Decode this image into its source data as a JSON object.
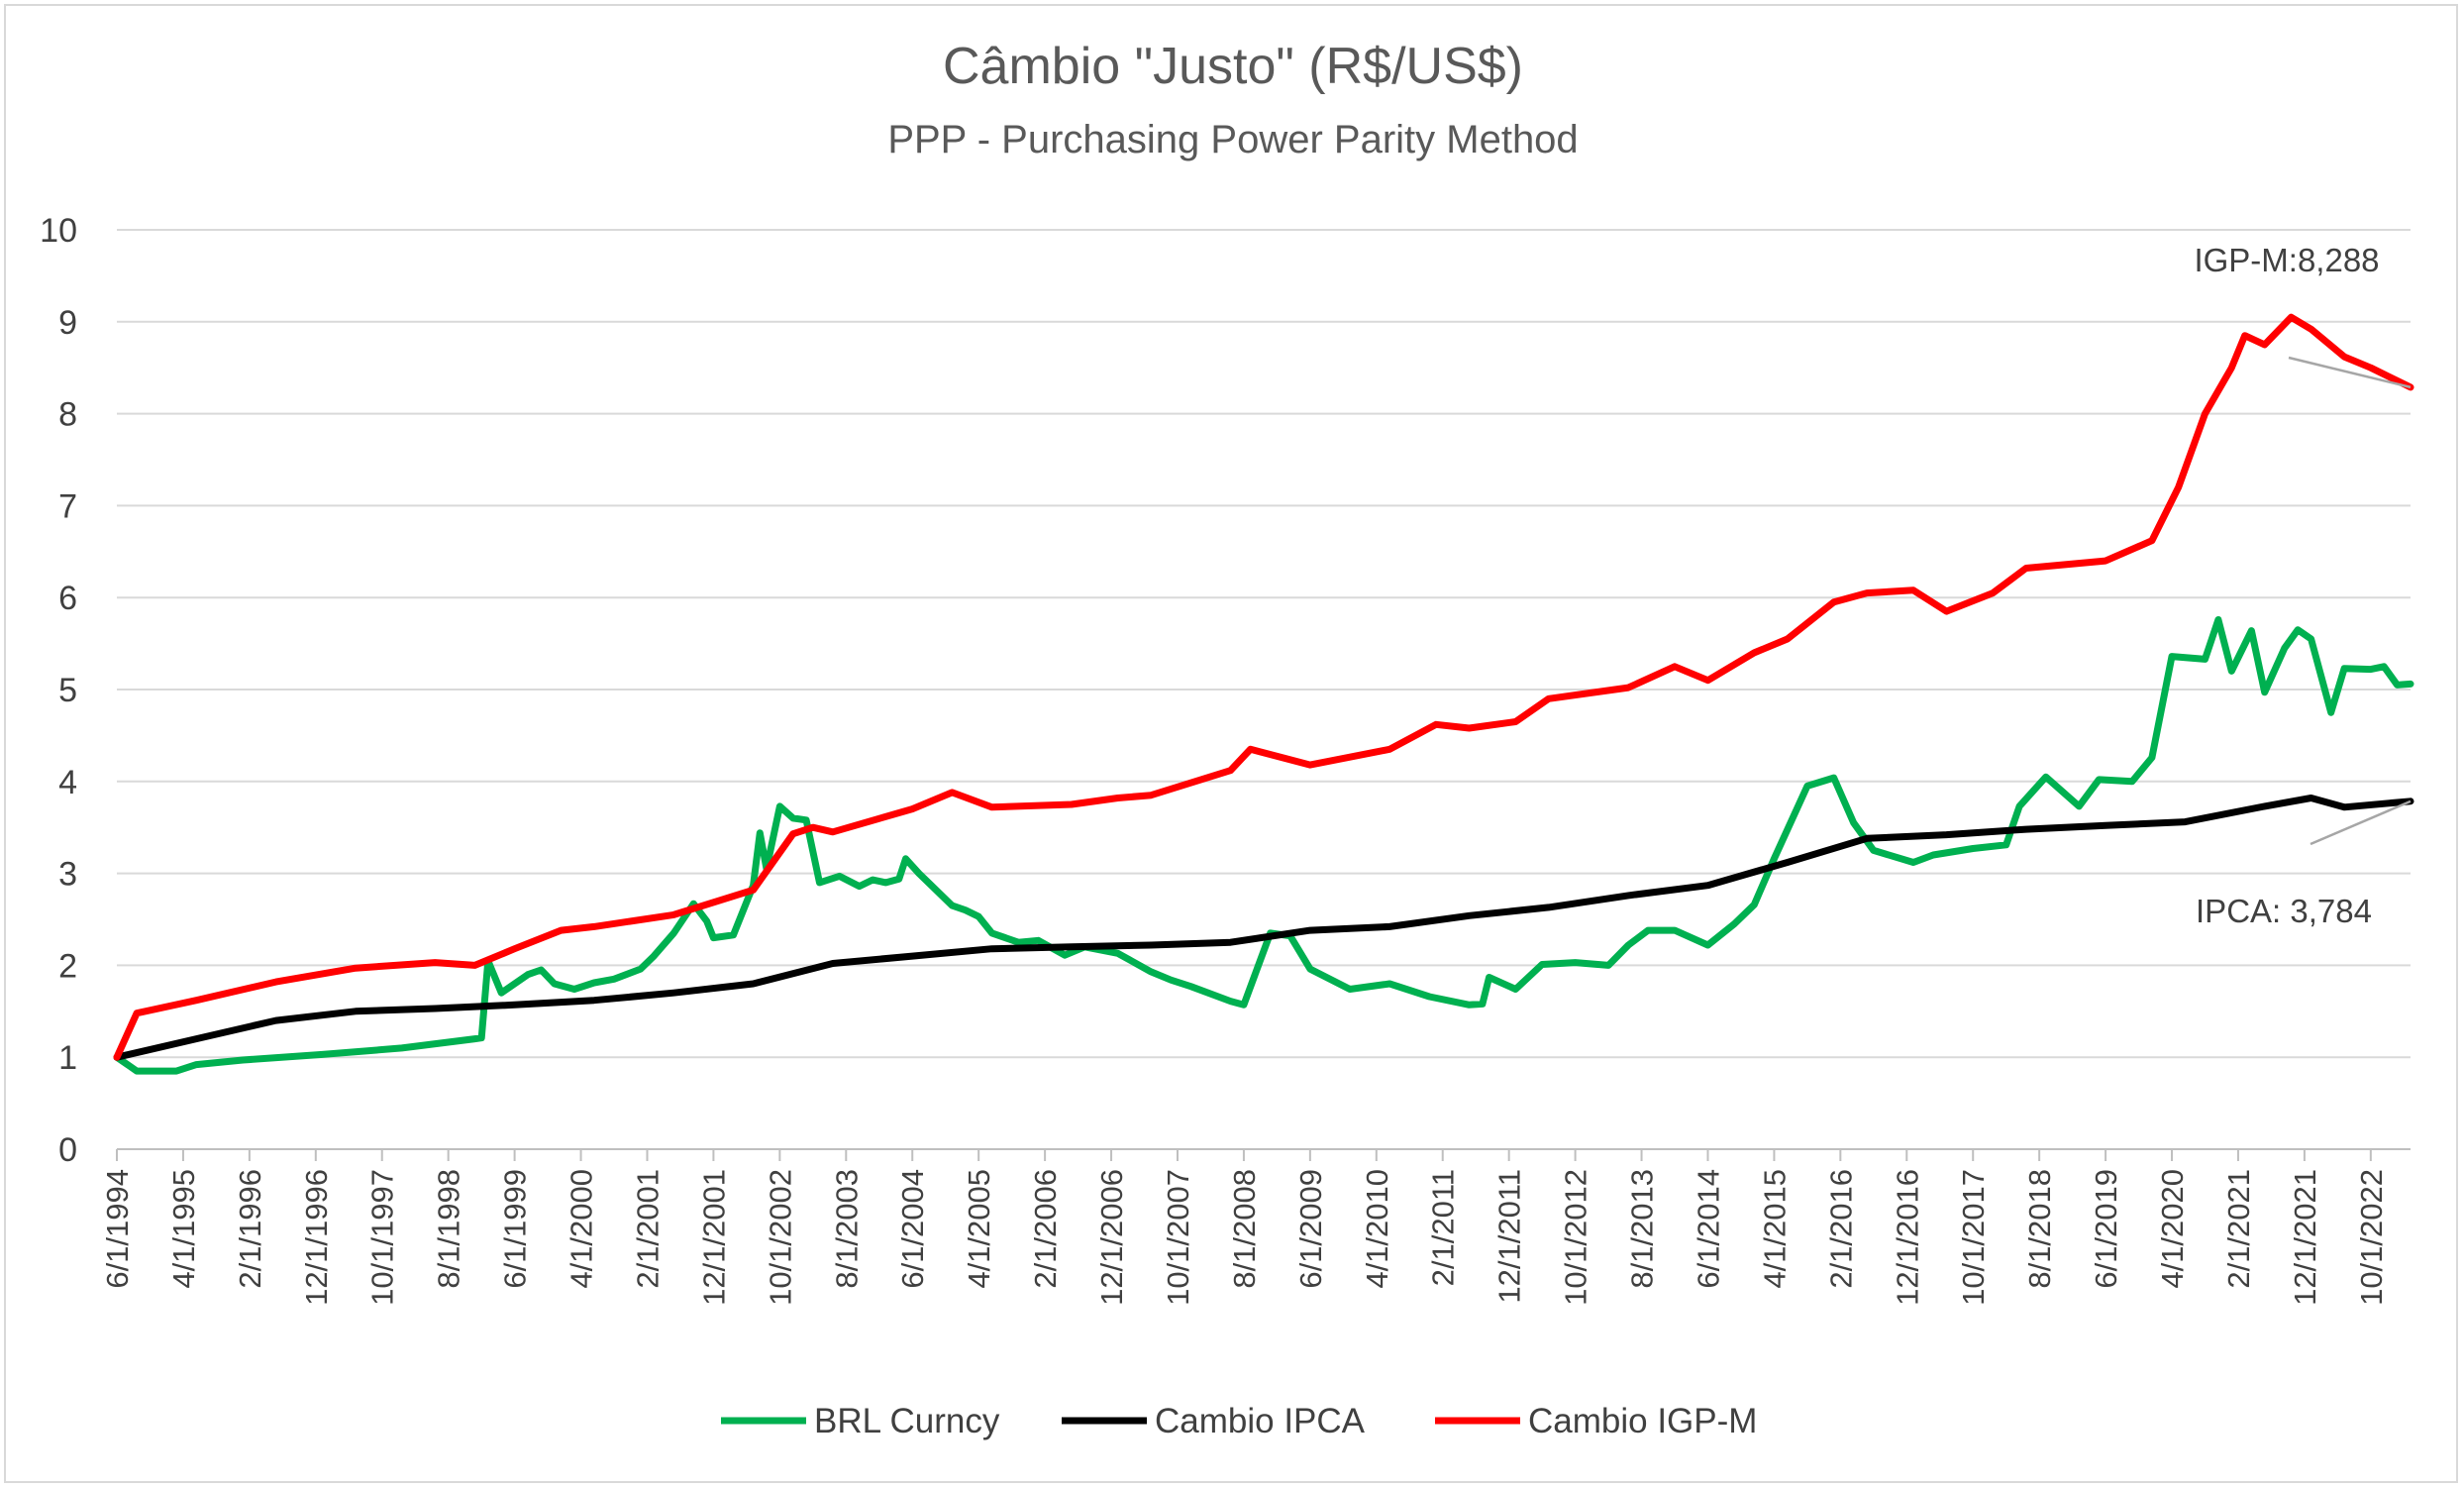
{
  "chart_data": {
    "type": "line",
    "title": "Câmbio \"Justo\" (R$/US$)",
    "subtitle": "PPP - Purchasing Power Parity Method",
    "ylim": [
      0,
      10
    ],
    "y_ticks": [
      0,
      1,
      2,
      3,
      4,
      5,
      6,
      7,
      8,
      9,
      10
    ],
    "grid": true,
    "legend_position": "bottom",
    "x_tick_labels": [
      "6/1/1994",
      "4/1/1995",
      "2/1/1996",
      "12/1/1996",
      "10/1/1997",
      "8/1/1998",
      "6/1/1999",
      "4/1/2000",
      "2/1/2001",
      "12/1/2001",
      "10/1/2002",
      "8/1/2003",
      "6/1/2004",
      "4/1/2005",
      "2/1/2006",
      "12/1/2006",
      "10/1/2007",
      "8/1/2008",
      "6/1/2009",
      "4/1/2010",
      "2/1/2011",
      "12/1/2011",
      "10/1/2012",
      "8/1/2013",
      "6/1/2014",
      "4/1/2015",
      "2/1/2016",
      "12/1/2016",
      "10/1/2017",
      "8/1/2018",
      "6/1/2019",
      "4/1/2020",
      "2/1/2021",
      "12/1/2021",
      "10/1/2022"
    ],
    "series": [
      {
        "name": "BRL Curncy",
        "color": "#00b050",
        "points": [
          [
            "1994-06",
            1.0
          ],
          [
            "1994-09",
            0.85
          ],
          [
            "1995-03",
            0.85
          ],
          [
            "1995-06",
            0.92
          ],
          [
            "1996-01",
            0.97
          ],
          [
            "1997-01",
            1.03
          ],
          [
            "1998-01",
            1.1
          ],
          [
            "1998-12",
            1.2
          ],
          [
            "1999-01",
            1.21
          ],
          [
            "1999-02",
            2.05
          ],
          [
            "1999-04",
            1.7
          ],
          [
            "1999-08",
            1.9
          ],
          [
            "1999-10",
            1.95
          ],
          [
            "1999-12",
            1.8
          ],
          [
            "2000-03",
            1.74
          ],
          [
            "2000-06",
            1.81
          ],
          [
            "2000-09",
            1.85
          ],
          [
            "2001-01",
            1.96
          ],
          [
            "2001-03",
            2.1
          ],
          [
            "2001-06",
            2.35
          ],
          [
            "2001-09",
            2.67
          ],
          [
            "2001-11",
            2.48
          ],
          [
            "2001-12",
            2.3
          ],
          [
            "2002-03",
            2.33
          ],
          [
            "2002-06",
            2.87
          ],
          [
            "2002-07",
            3.44
          ],
          [
            "2002-08",
            3.05
          ],
          [
            "2002-10",
            3.73
          ],
          [
            "2002-12",
            3.6
          ],
          [
            "2003-02",
            3.58
          ],
          [
            "2003-04",
            2.9
          ],
          [
            "2003-07",
            2.97
          ],
          [
            "2003-10",
            2.86
          ],
          [
            "2003-12",
            2.93
          ],
          [
            "2004-02",
            2.9
          ],
          [
            "2004-04",
            2.94
          ],
          [
            "2004-05",
            3.16
          ],
          [
            "2004-07",
            3.0
          ],
          [
            "2004-12",
            2.65
          ],
          [
            "2005-02",
            2.6
          ],
          [
            "2005-04",
            2.53
          ],
          [
            "2005-06",
            2.35
          ],
          [
            "2005-10",
            2.25
          ],
          [
            "2006-01",
            2.27
          ],
          [
            "2006-05",
            2.11
          ],
          [
            "2006-08",
            2.2
          ],
          [
            "2007-01",
            2.13
          ],
          [
            "2007-06",
            1.93
          ],
          [
            "2007-09",
            1.84
          ],
          [
            "2007-12",
            1.77
          ],
          [
            "2008-06",
            1.61
          ],
          [
            "2008-08",
            1.57
          ],
          [
            "2008-12",
            2.35
          ],
          [
            "2009-03",
            2.32
          ],
          [
            "2009-06",
            1.96
          ],
          [
            "2009-12",
            1.74
          ],
          [
            "2010-06",
            1.8
          ],
          [
            "2010-12",
            1.66
          ],
          [
            "2011-06",
            1.57
          ],
          [
            "2011-08",
            1.58
          ],
          [
            "2011-09",
            1.87
          ],
          [
            "2012-01",
            1.74
          ],
          [
            "2012-05",
            2.01
          ],
          [
            "2012-10",
            2.03
          ],
          [
            "2013-03",
            2.0
          ],
          [
            "2013-06",
            2.22
          ],
          [
            "2013-09",
            2.38
          ],
          [
            "2014-01",
            2.38
          ],
          [
            "2014-06",
            2.22
          ],
          [
            "2014-10",
            2.45
          ],
          [
            "2015-01",
            2.66
          ],
          [
            "2015-04",
            3.16
          ],
          [
            "2015-09",
            3.95
          ],
          [
            "2016-01",
            4.04
          ],
          [
            "2016-04",
            3.55
          ],
          [
            "2016-07",
            3.25
          ],
          [
            "2017-01",
            3.12
          ],
          [
            "2017-04",
            3.2
          ],
          [
            "2017-10",
            3.27
          ],
          [
            "2018-03",
            3.31
          ],
          [
            "2018-05",
            3.73
          ],
          [
            "2018-09",
            4.05
          ],
          [
            "2019-02",
            3.73
          ],
          [
            "2019-05",
            4.02
          ],
          [
            "2019-10",
            4.0
          ],
          [
            "2020-01",
            4.26
          ],
          [
            "2020-04",
            5.36
          ],
          [
            "2020-09",
            5.33
          ],
          [
            "2020-11",
            5.76
          ],
          [
            "2021-01",
            5.2
          ],
          [
            "2021-04",
            5.64
          ],
          [
            "2021-06",
            4.97
          ],
          [
            "2021-09",
            5.45
          ],
          [
            "2021-11",
            5.65
          ],
          [
            "2022-01",
            5.55
          ],
          [
            "2022-04",
            4.75
          ],
          [
            "2022-06",
            5.23
          ],
          [
            "2022-10",
            5.22
          ],
          [
            "2022-12",
            5.25
          ],
          [
            "2023-02",
            5.05
          ],
          [
            "2023-04",
            5.06
          ]
        ]
      },
      {
        "name": "Cambio IPCA",
        "color": "#000000",
        "points": [
          [
            "1994-06",
            1.0
          ],
          [
            "1995-06",
            1.2
          ],
          [
            "1996-06",
            1.4
          ],
          [
            "1997-06",
            1.5
          ],
          [
            "1998-06",
            1.53
          ],
          [
            "1999-06",
            1.57
          ],
          [
            "2000-06",
            1.62
          ],
          [
            "2001-06",
            1.7
          ],
          [
            "2002-06",
            1.8
          ],
          [
            "2003-06",
            2.02
          ],
          [
            "2004-06",
            2.1
          ],
          [
            "2005-06",
            2.18
          ],
          [
            "2006-06",
            2.2
          ],
          [
            "2007-06",
            2.22
          ],
          [
            "2008-06",
            2.25
          ],
          [
            "2009-06",
            2.38
          ],
          [
            "2010-06",
            2.42
          ],
          [
            "2011-06",
            2.54
          ],
          [
            "2012-06",
            2.63
          ],
          [
            "2013-06",
            2.76
          ],
          [
            "2014-06",
            2.87
          ],
          [
            "2015-06",
            3.12
          ],
          [
            "2016-06",
            3.38
          ],
          [
            "2017-06",
            3.42
          ],
          [
            "2018-06",
            3.48
          ],
          [
            "2019-06",
            3.52
          ],
          [
            "2020-06",
            3.56
          ],
          [
            "2021-06",
            3.73
          ],
          [
            "2022-01",
            3.82
          ],
          [
            "2022-06",
            3.72
          ],
          [
            "2023-04",
            3.784
          ]
        ]
      },
      {
        "name": "Cambio IGP-M",
        "color": "#ff0000",
        "points": [
          [
            "1994-06",
            1.0
          ],
          [
            "1994-09",
            1.48
          ],
          [
            "1995-06",
            1.62
          ],
          [
            "1996-06",
            1.82
          ],
          [
            "1997-06",
            1.97
          ],
          [
            "1998-06",
            2.03
          ],
          [
            "1998-12",
            2.0
          ],
          [
            "1999-06",
            2.18
          ],
          [
            "2000-01",
            2.38
          ],
          [
            "2000-06",
            2.42
          ],
          [
            "2001-06",
            2.55
          ],
          [
            "2002-06",
            2.82
          ],
          [
            "2002-12",
            3.43
          ],
          [
            "2003-03",
            3.5
          ],
          [
            "2003-06",
            3.45
          ],
          [
            "2004-06",
            3.7
          ],
          [
            "2004-12",
            3.88
          ],
          [
            "2005-06",
            3.72
          ],
          [
            "2006-06",
            3.75
          ],
          [
            "2007-01",
            3.82
          ],
          [
            "2007-06",
            3.85
          ],
          [
            "2008-06",
            4.12
          ],
          [
            "2008-09",
            4.35
          ],
          [
            "2009-06",
            4.18
          ],
          [
            "2010-06",
            4.35
          ],
          [
            "2011-01",
            4.62
          ],
          [
            "2011-06",
            4.58
          ],
          [
            "2012-01",
            4.65
          ],
          [
            "2012-06",
            4.9
          ],
          [
            "2013-06",
            5.02
          ],
          [
            "2014-01",
            5.25
          ],
          [
            "2014-06",
            5.1
          ],
          [
            "2015-01",
            5.4
          ],
          [
            "2015-06",
            5.55
          ],
          [
            "2016-01",
            5.95
          ],
          [
            "2016-06",
            6.05
          ],
          [
            "2017-01",
            6.08
          ],
          [
            "2017-06",
            5.85
          ],
          [
            "2018-01",
            6.05
          ],
          [
            "2018-06",
            6.32
          ],
          [
            "2019-06",
            6.4
          ],
          [
            "2020-01",
            6.62
          ],
          [
            "2020-05",
            7.2
          ],
          [
            "2020-09",
            8.0
          ],
          [
            "2021-01",
            8.5
          ],
          [
            "2021-03",
            8.85
          ],
          [
            "2021-06",
            8.75
          ],
          [
            "2021-10",
            9.05
          ],
          [
            "2022-01",
            8.92
          ],
          [
            "2022-06",
            8.62
          ],
          [
            "2022-10",
            8.5
          ],
          [
            "2023-04",
            8.288
          ]
        ]
      }
    ],
    "annotations": [
      {
        "text": "IGP-M:8,288",
        "series": "Cambio IGP-M",
        "target": [
          "2023-04",
          8.288
        ]
      },
      {
        "text": "IPCA: 3,784",
        "series": "Cambio IPCA",
        "target": [
          "2023-04",
          3.784
        ]
      }
    ]
  }
}
